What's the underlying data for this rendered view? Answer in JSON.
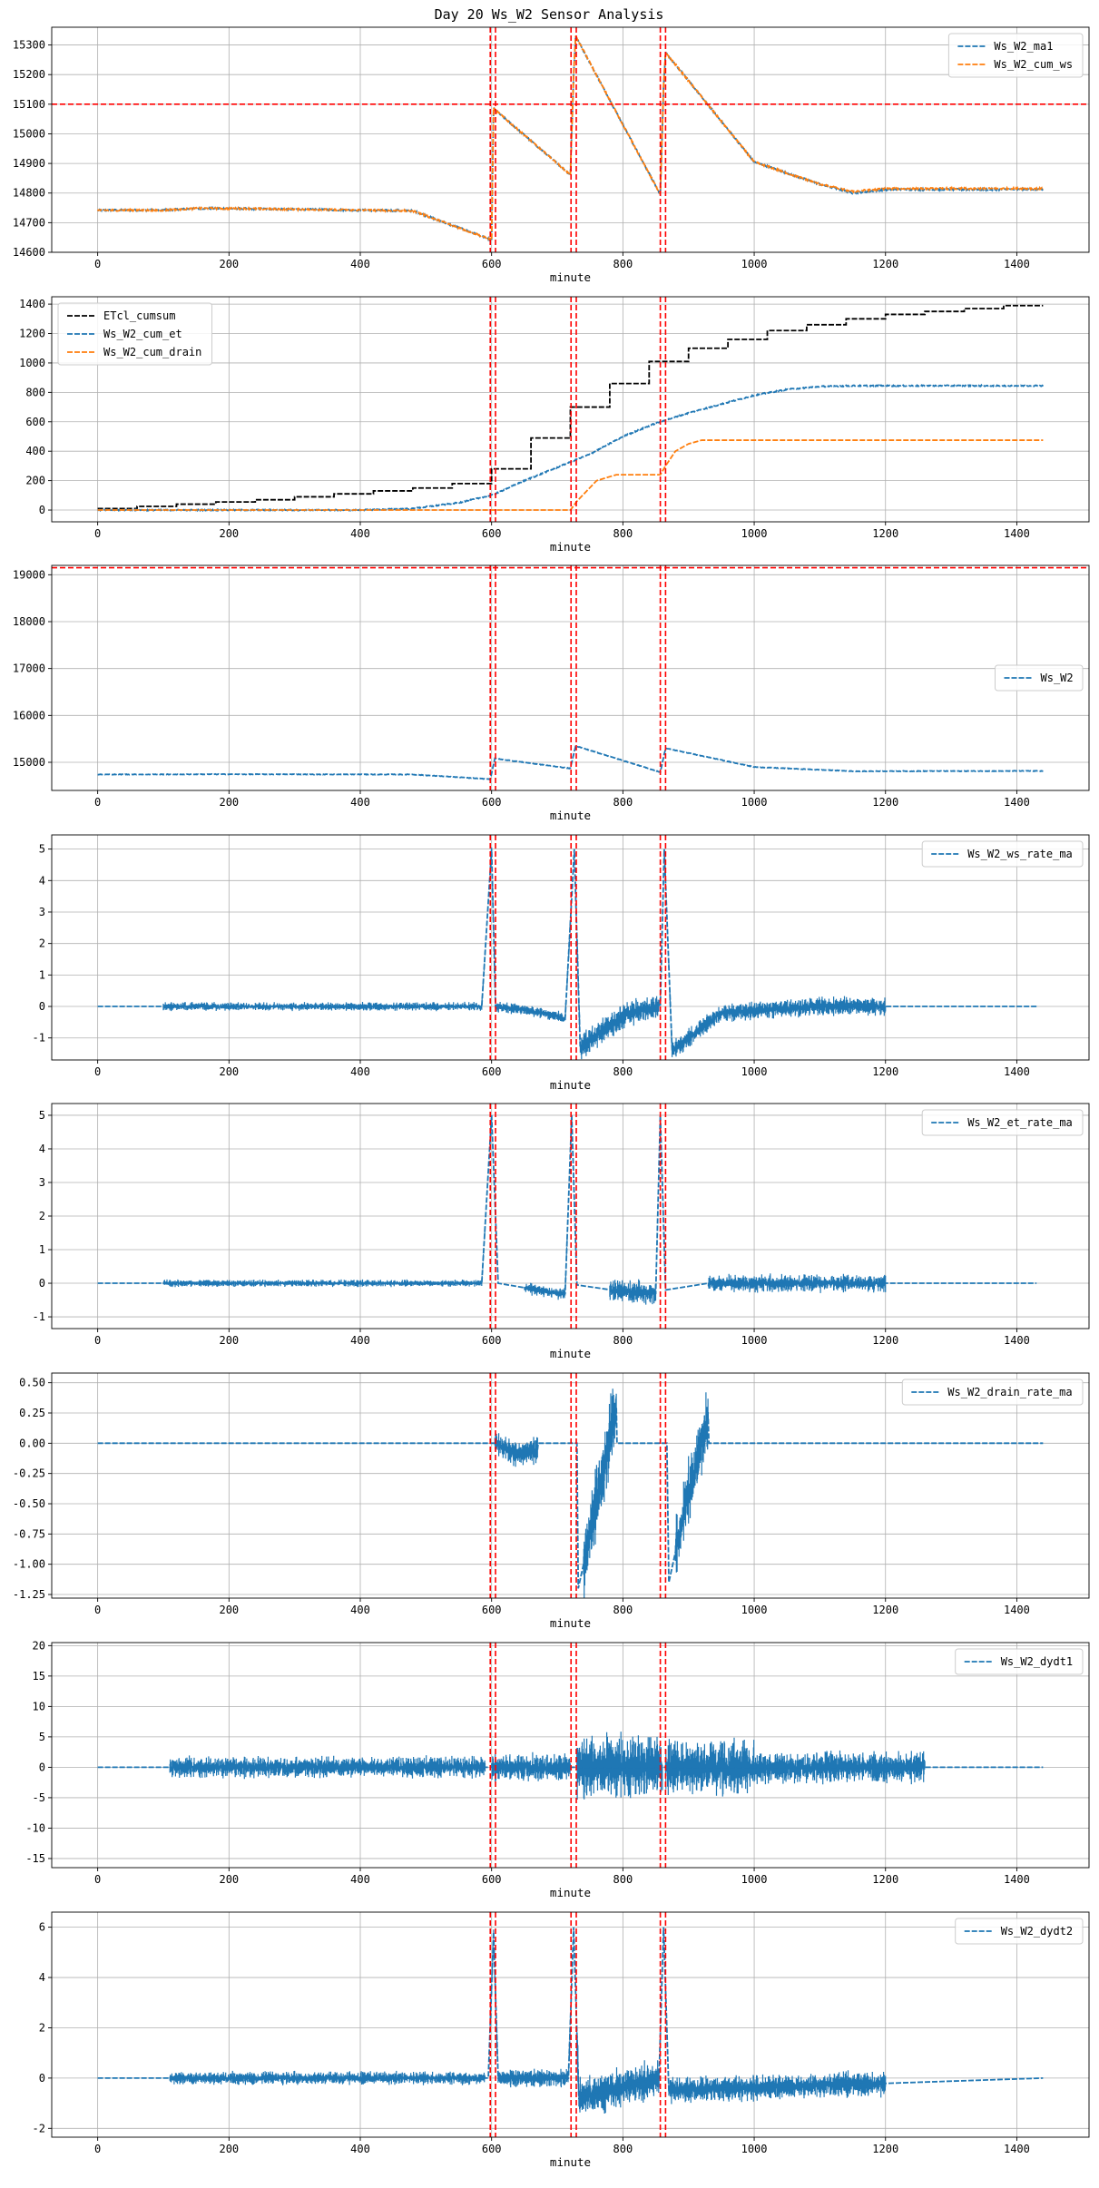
{
  "figure": {
    "title": "Day 20 Ws_W2 Sensor Analysis"
  },
  "colors": {
    "blue": "#1f77b4",
    "orange": "#ff7f0e",
    "black": "#000000",
    "red": "#ff0000",
    "grid": "#b0b0b0"
  },
  "chart_data": [
    {
      "type": "line",
      "xlabel": "minute",
      "xlim": [
        -70,
        1510
      ],
      "xticks": [
        0,
        200,
        400,
        600,
        800,
        1000,
        1200,
        1400
      ],
      "ylim": [
        14600,
        15360
      ],
      "yticks": [
        14600,
        14700,
        14800,
        14900,
        15000,
        15100,
        15200,
        15300
      ],
      "grid": true,
      "legend_position": "upper right",
      "hlines": [
        15100
      ],
      "vlines": [
        598,
        606,
        721,
        729,
        857,
        865
      ],
      "series": [
        {
          "name": "Ws_W2_ma1",
          "color": "#1f77b4",
          "style": "dashed",
          "noise": 3,
          "x": [
            0,
            100,
            150,
            200,
            480,
            600,
            603,
            720,
            725,
            728,
            857,
            862,
            865,
            1000,
            1100,
            1150,
            1200,
            1440
          ],
          "y": [
            14742,
            14742,
            14748,
            14748,
            14740,
            14642,
            15085,
            14862,
            15200,
            15330,
            14795,
            15160,
            15275,
            14905,
            14830,
            14800,
            14812,
            14812
          ]
        },
        {
          "name": "Ws_W2_cum_ws",
          "color": "#ff7f0e",
          "style": "dashed",
          "noise": 3,
          "x": [
            0,
            100,
            150,
            200,
            480,
            600,
            603,
            720,
            725,
            728,
            857,
            862,
            865,
            1000,
            1100,
            1150,
            1200,
            1440
          ],
          "y": [
            14742,
            14742,
            14748,
            14748,
            14740,
            14642,
            15085,
            14862,
            15200,
            15330,
            14795,
            15160,
            15275,
            14905,
            14830,
            14805,
            14815,
            14815
          ]
        }
      ]
    },
    {
      "type": "line",
      "xlabel": "minute",
      "xlim": [
        -70,
        1510
      ],
      "xticks": [
        0,
        200,
        400,
        600,
        800,
        1000,
        1200,
        1400
      ],
      "ylim": [
        -80,
        1450
      ],
      "yticks": [
        0,
        200,
        400,
        600,
        800,
        1000,
        1200,
        1400
      ],
      "grid": true,
      "legend_position": "upper left",
      "hlines": [],
      "vlines": [
        598,
        606,
        721,
        729,
        857,
        865
      ],
      "series": [
        {
          "name": "ETcl_cumsum",
          "color": "#000000",
          "style": "dashed",
          "step": true,
          "x": [
            0,
            60,
            120,
            180,
            240,
            300,
            360,
            420,
            480,
            540,
            600,
            660,
            720,
            780,
            840,
            900,
            960,
            1020,
            1080,
            1140,
            1200,
            1260,
            1320,
            1380,
            1440
          ],
          "y": [
            10,
            25,
            40,
            55,
            70,
            90,
            110,
            130,
            150,
            180,
            280,
            490,
            700,
            860,
            1010,
            1100,
            1160,
            1220,
            1260,
            1300,
            1330,
            1350,
            1370,
            1390,
            1390
          ]
        },
        {
          "name": "Ws_W2_cum_et",
          "color": "#1f77b4",
          "style": "dashed",
          "noise": 4,
          "x": [
            0,
            400,
            480,
            550,
            600,
            650,
            700,
            750,
            800,
            850,
            900,
            950,
            1000,
            1050,
            1100,
            1150,
            1200,
            1440
          ],
          "y": [
            0,
            0,
            10,
            50,
            100,
            200,
            290,
            380,
            500,
            590,
            660,
            720,
            780,
            820,
            840,
            845,
            845,
            845
          ]
        },
        {
          "name": "Ws_W2_cum_drain",
          "color": "#ff7f0e",
          "style": "dashed",
          "x": [
            0,
            720,
            730,
            760,
            790,
            857,
            865,
            880,
            900,
            920,
            1440
          ],
          "y": [
            0,
            0,
            60,
            200,
            240,
            240,
            300,
            400,
            450,
            475,
            475
          ]
        }
      ]
    },
    {
      "type": "line",
      "xlabel": "minute",
      "xlim": [
        -70,
        1510
      ],
      "xticks": [
        0,
        200,
        400,
        600,
        800,
        1000,
        1200,
        1400
      ],
      "ylim": [
        14400,
        19200
      ],
      "yticks": [
        15000,
        16000,
        17000,
        18000,
        19000
      ],
      "grid": true,
      "legend_position": "center right",
      "hlines": [
        19150
      ],
      "vlines": [
        598,
        606,
        721,
        729,
        857,
        865
      ],
      "series": [
        {
          "name": "Ws_W2",
          "color": "#1f77b4",
          "style": "dashed",
          "noise": 6,
          "x": [
            0,
            200,
            480,
            598,
            605,
            720,
            728,
            857,
            865,
            1000,
            1150,
            1440
          ],
          "y": [
            14740,
            14745,
            14740,
            14640,
            15080,
            14870,
            15350,
            14790,
            15300,
            14900,
            14810,
            14815
          ]
        }
      ]
    },
    {
      "type": "line",
      "xlabel": "minute",
      "xlim": [
        -70,
        1510
      ],
      "xticks": [
        0,
        200,
        400,
        600,
        800,
        1000,
        1200,
        1400
      ],
      "ylim": [
        -1.7,
        5.45
      ],
      "yticks": [
        -1,
        0,
        1,
        2,
        3,
        4,
        5
      ],
      "grid": true,
      "legend_position": "upper right",
      "hlines": [],
      "vlines": [
        598,
        606,
        721,
        729,
        857,
        865
      ],
      "bands": [
        [
          100,
          590,
          0.15
        ],
        [
          600,
          720,
          0.2
        ],
        [
          730,
          855,
          0.5
        ],
        [
          870,
          1200,
          0.35
        ]
      ],
      "series": [
        {
          "name": "Ws_W2_ws_rate_ma",
          "color": "#1f77b4",
          "style": "dashed",
          "x": [
            0,
            585,
            600,
            606,
            650,
            700,
            712,
            726,
            735,
            800,
            857,
            863,
            875,
            950,
            1100,
            1430
          ],
          "y": [
            0,
            0,
            5.0,
            0,
            -0.1,
            -0.3,
            -0.4,
            5.0,
            -1.3,
            -0.3,
            0.05,
            5.0,
            -1.4,
            -0.2,
            0,
            0
          ]
        }
      ]
    },
    {
      "type": "line",
      "xlabel": "minute",
      "xlim": [
        -70,
        1510
      ],
      "xticks": [
        0,
        200,
        400,
        600,
        800,
        1000,
        1200,
        1400
      ],
      "ylim": [
        -1.35,
        5.35
      ],
      "yticks": [
        -1,
        0,
        1,
        2,
        3,
        4,
        5
      ],
      "grid": true,
      "legend_position": "upper right",
      "hlines": [],
      "vlines": [
        598,
        606,
        721,
        729,
        857,
        865
      ],
      "bands": [
        [
          100,
          590,
          0.12
        ],
        [
          650,
          715,
          0.2
        ],
        [
          780,
          850,
          0.4
        ],
        [
          930,
          1200,
          0.3
        ]
      ],
      "series": [
        {
          "name": "Ws_W2_et_rate_ma",
          "color": "#1f77b4",
          "style": "dashed",
          "x": [
            0,
            585,
            600,
            610,
            700,
            712,
            722,
            730,
            800,
            850,
            857,
            865,
            930,
            1430
          ],
          "y": [
            0,
            0,
            5.0,
            0,
            -0.3,
            -0.3,
            5.0,
            -0.05,
            -0.25,
            -0.3,
            5.0,
            -0.2,
            0,
            0
          ]
        }
      ]
    },
    {
      "type": "line",
      "xlabel": "minute",
      "xlim": [
        -70,
        1510
      ],
      "xticks": [
        0,
        200,
        400,
        600,
        800,
        1000,
        1200,
        1400
      ],
      "ylim": [
        -1.28,
        0.58
      ],
      "yticks": [
        -1.25,
        -1.0,
        -0.75,
        -0.5,
        -0.25,
        0.0,
        0.25,
        0.5
      ],
      "grid": true,
      "legend_position": "upper right",
      "hlines": [],
      "vlines": [
        598,
        606,
        721,
        729,
        857,
        865
      ],
      "bands": [
        [
          605,
          670,
          0.12
        ],
        [
          740,
          790,
          0.35
        ],
        [
          880,
          930,
          0.3
        ]
      ],
      "series": [
        {
          "name": "Ws_W2_drain_rate_ma",
          "color": "#1f77b4",
          "style": "dashed",
          "x": [
            0,
            605,
            640,
            670,
            671,
            730,
            732,
            760,
            790,
            791,
            867,
            870,
            900,
            930,
            931,
            1440
          ],
          "y": [
            0,
            0,
            -0.1,
            -0.05,
            0,
            0,
            -1.2,
            -0.5,
            0.3,
            0,
            0,
            -1.15,
            -0.4,
            0.2,
            0,
            0
          ]
        }
      ]
    },
    {
      "type": "line",
      "xlabel": "minute",
      "xlim": [
        -70,
        1510
      ],
      "xticks": [
        0,
        200,
        400,
        600,
        800,
        1000,
        1200,
        1400
      ],
      "ylim": [
        -16.5,
        20.5
      ],
      "yticks": [
        -15,
        -10,
        -5,
        0,
        5,
        10,
        15,
        20
      ],
      "grid": true,
      "legend_position": "upper right",
      "hlines": [],
      "vlines": [
        598,
        606,
        721,
        729,
        857,
        865
      ],
      "bands": [
        [
          110,
          590,
          2.0
        ],
        [
          600,
          720,
          2.8
        ],
        [
          730,
          860,
          6.0
        ],
        [
          865,
          1000,
          5.0
        ],
        [
          1000,
          1260,
          3.0
        ]
      ],
      "series": [
        {
          "name": "Ws_W2_dydt1",
          "color": "#1f77b4",
          "style": "dashed",
          "x": [
            0,
            1440
          ],
          "y": [
            0,
            0
          ]
        }
      ]
    },
    {
      "type": "line",
      "xlabel": "minute",
      "xlim": [
        -70,
        1510
      ],
      "xticks": [
        0,
        200,
        400,
        600,
        800,
        1000,
        1200,
        1400
      ],
      "ylim": [
        -2.35,
        6.6
      ],
      "yticks": [
        -2,
        0,
        2,
        4,
        6
      ],
      "grid": true,
      "legend_position": "upper right",
      "hlines": [],
      "vlines": [
        598,
        606,
        721,
        729,
        857,
        865
      ],
      "bands": [
        [
          110,
          590,
          0.3
        ],
        [
          600,
          720,
          0.4
        ],
        [
          730,
          855,
          0.9
        ],
        [
          870,
          1200,
          0.6
        ]
      ],
      "series": [
        {
          "name": "Ws_W2_dydt2",
          "color": "#1f77b4",
          "style": "dashed",
          "x": [
            0,
            595,
            603,
            610,
            717,
            725,
            733,
            855,
            862,
            870,
            1440
          ],
          "y": [
            0,
            0,
            5.8,
            0,
            0,
            6.0,
            -0.8,
            0,
            6.0,
            -0.5,
            0
          ]
        }
      ]
    }
  ]
}
